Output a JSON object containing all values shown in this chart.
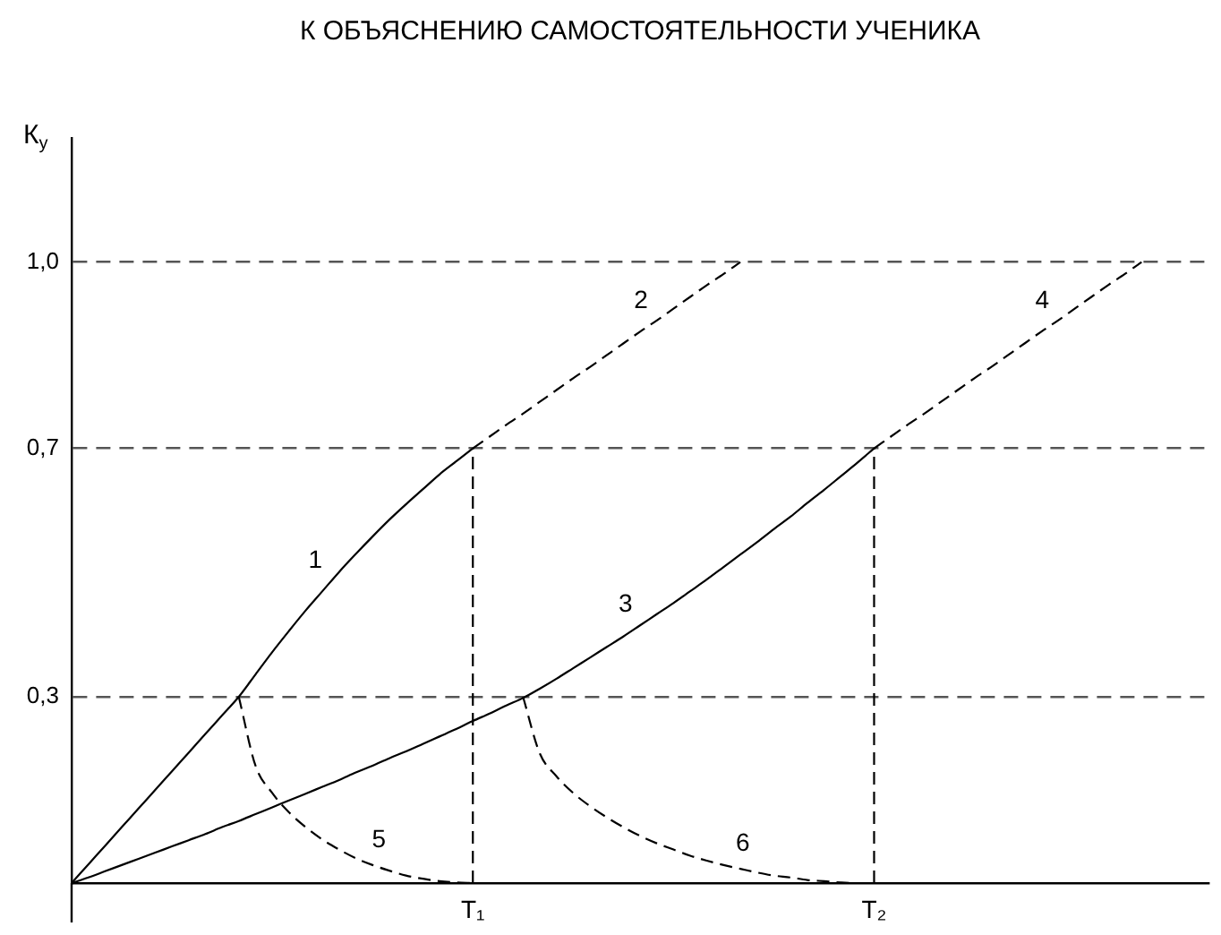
{
  "chart_data": {
    "type": "line",
    "title": "К ОБЪЯСНЕНИЮ САМОСТОЯТЕЛЬНОСТИ УЧЕНИКА",
    "ylabel": "К$_{у}$",
    "categories": [
      null,
      null,
      null,
      null,
      null,
      null,
      null,
      null,
      null,
      null,
      null,
      null,
      null,
      null,
      null,
      null,
      null,
      null,
      null,
      null,
      null,
      null,
      null,
      null,
      "T₁",
      null,
      null,
      null,
      null,
      null,
      null,
      null,
      null,
      null,
      null,
      null,
      null,
      null,
      null,
      null,
      null,
      null,
      null,
      null,
      null,
      null,
      null,
      null,
      "T₂",
      null,
      null,
      null,
      null,
      null,
      null,
      null,
      null,
      null,
      null,
      null,
      null,
      null,
      null,
      null,
      null,
      null,
      null,
      null,
      null
    ],
    "ylim": [
      0,
      1.2
    ],
    "yticks": [
      {
        "value": 0.3,
        "label": "0,3"
      },
      {
        "value": 0.7,
        "label": "0,7"
      },
      {
        "value": 1,
        "label": "1,0"
      }
    ],
    "grid": "y",
    "legend": false,
    "marker": "none",
    "series": [
      {
        "name": "1",
        "color": "#000000",
        "line_style": "solid",
        "values": [
          0,
          0.03,
          0.06,
          0.09,
          0.12,
          0.15,
          0.18,
          0.21,
          0.24,
          0.27,
          0.3,
          0.336,
          0.372,
          0.406,
          0.439,
          0.47,
          0.501,
          0.53,
          0.558,
          0.585,
          0.61,
          0.634,
          0.658,
          0.679,
          0.7,
          null,
          null,
          null,
          null,
          null,
          null,
          null,
          null,
          null,
          null,
          null,
          null,
          null,
          null,
          null,
          null,
          null,
          null,
          null,
          null,
          null,
          null,
          null,
          null,
          null,
          null,
          null,
          null,
          null,
          null,
          null,
          null,
          null,
          null,
          null,
          null,
          null,
          null,
          null,
          null,
          null,
          null,
          null,
          null
        ]
      },
      {
        "name": "2",
        "color": "#000000",
        "line_style": "dashed",
        "values": [
          null,
          null,
          null,
          null,
          null,
          null,
          null,
          null,
          null,
          null,
          null,
          null,
          null,
          null,
          null,
          null,
          null,
          null,
          null,
          null,
          null,
          null,
          null,
          null,
          0.7,
          0.719,
          0.738,
          0.756,
          0.775,
          0.794,
          0.813,
          0.831,
          0.85,
          0.869,
          0.888,
          0.906,
          0.925,
          0.944,
          0.963,
          0.981,
          1,
          null,
          null,
          null,
          null,
          null,
          null,
          null,
          null,
          null,
          null,
          null,
          null,
          null,
          null,
          null,
          null,
          null,
          null,
          null,
          null,
          null,
          null,
          null,
          null,
          null,
          null,
          null,
          null
        ]
      },
      {
        "name": "3",
        "color": "#000000",
        "line_style": "solid",
        "values": [
          0,
          0.009,
          0.019,
          0.029,
          0.039,
          0.049,
          0.059,
          0.069,
          0.079,
          0.09,
          0.1,
          0.111,
          0.122,
          0.133,
          0.144,
          0.155,
          0.166,
          0.178,
          0.189,
          0.201,
          0.212,
          0.224,
          0.236,
          0.248,
          0.261,
          0.273,
          0.286,
          0.298,
          0.313,
          0.329,
          0.346,
          0.363,
          0.38,
          0.397,
          0.415,
          0.433,
          0.451,
          0.47,
          0.489,
          0.509,
          0.529,
          0.549,
          0.57,
          0.59,
          0.612,
          0.633,
          0.655,
          0.677,
          0.7,
          null,
          null,
          null,
          null,
          null,
          null,
          null,
          null,
          null,
          null,
          null,
          null,
          null,
          null,
          null,
          null,
          null,
          null,
          null,
          null
        ]
      },
      {
        "name": "4",
        "color": "#000000",
        "line_style": "dashed",
        "values": [
          null,
          null,
          null,
          null,
          null,
          null,
          null,
          null,
          null,
          null,
          null,
          null,
          null,
          null,
          null,
          null,
          null,
          null,
          null,
          null,
          null,
          null,
          null,
          null,
          null,
          null,
          null,
          null,
          null,
          null,
          null,
          null,
          null,
          null,
          null,
          null,
          null,
          null,
          null,
          null,
          null,
          null,
          null,
          null,
          null,
          null,
          null,
          null,
          0.7,
          0.719,
          0.738,
          0.756,
          0.775,
          0.794,
          0.813,
          0.831,
          0.85,
          0.869,
          0.888,
          0.906,
          0.925,
          0.944,
          0.963,
          0.981,
          1,
          null,
          null,
          null,
          null
        ]
      },
      {
        "name": "5",
        "color": "#000000",
        "line_style": "dashed",
        "values": [
          null,
          null,
          null,
          null,
          null,
          null,
          null,
          null,
          null,
          null,
          0.3,
          0.189,
          0.145,
          0.114,
          0.09,
          0.07,
          0.054,
          0.04,
          0.029,
          0.02,
          0.012,
          0.007,
          0.003,
          0.001,
          0,
          null,
          null,
          null,
          null,
          null,
          null,
          null,
          null,
          null,
          null,
          null,
          null,
          null,
          null,
          null,
          null,
          null,
          null,
          null,
          null,
          null,
          null,
          null,
          null,
          null,
          null,
          null,
          null,
          null,
          null,
          null,
          null,
          null,
          null,
          null,
          null,
          null,
          null,
          null,
          null,
          null,
          null,
          null,
          null
        ]
      },
      {
        "name": "6",
        "color": "#000000",
        "line_style": "dashed",
        "values": [
          null,
          null,
          null,
          null,
          null,
          null,
          null,
          null,
          null,
          null,
          null,
          null,
          null,
          null,
          null,
          null,
          null,
          null,
          null,
          null,
          null,
          null,
          null,
          null,
          null,
          null,
          null,
          0.3,
          0.209,
          0.172,
          0.145,
          0.124,
          0.106,
          0.09,
          0.076,
          0.064,
          0.054,
          0.044,
          0.036,
          0.029,
          0.023,
          0.017,
          0.012,
          0.009,
          0.005,
          0.003,
          0.001,
          0,
          0,
          null,
          null,
          null,
          null,
          null,
          null,
          null,
          null,
          null,
          null,
          null,
          null,
          null,
          null,
          null,
          null,
          null,
          null,
          null,
          null
        ]
      },
      {
        "color": "#000000",
        "line_style": "dashed",
        "x": [
          "T₁",
          "T₁"
        ],
        "values": [
          0,
          0.7
        ]
      },
      {
        "color": "#000000",
        "line_style": "dashed",
        "x": [
          "T₂",
          "T₂"
        ],
        "values": [
          0,
          0.7
        ]
      }
    ]
  }
}
